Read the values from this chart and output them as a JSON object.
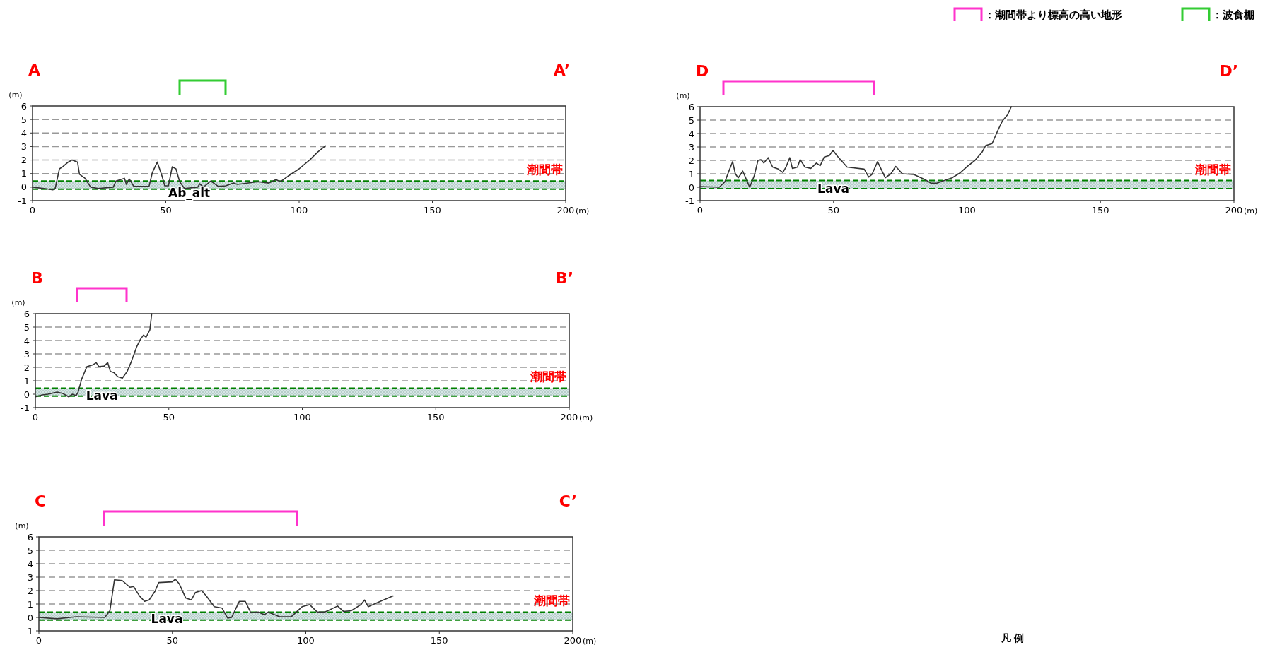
{
  "chart_data": [
    {
      "type": "line",
      "title": "A",
      "subtitle": "A’",
      "ylabel": "(m)",
      "xlabel": "(m)",
      "xlim": [
        0,
        200
      ],
      "ylim": [
        -1,
        6
      ],
      "xticks": [
        0,
        50,
        100,
        150,
        200
      ],
      "yticks": [
        -1,
        0,
        1,
        2,
        3,
        4,
        5,
        6
      ],
      "grid": "y",
      "series": [
        {
          "color": "#333333",
          "x": [
            0,
            4.2,
            7.7,
            8.5,
            10.1,
            11.3,
            13.4,
            14.8,
            16.9,
            17.6,
            19.7,
            21.8,
            24.6,
            30.3,
            31.3,
            34.5,
            35.2,
            36.3,
            38,
            43.7,
            45,
            46.8,
            48.6,
            49.6,
            51,
            52.4,
            53.8,
            55.2,
            57,
            62,
            62.7,
            64.1,
            66.9,
            69.7,
            72.5,
            75.4,
            76.8,
            78.9,
            84.5,
            88.7,
            91.3,
            93,
            95.8,
            100,
            104.2,
            107,
            109.9
          ],
          "values": [
            0,
            -0.1,
            -0.2,
            -0.1,
            1.35,
            1.5,
            1.85,
            2.0,
            1.85,
            0.95,
            0.65,
            0,
            -0.1,
            0,
            0.45,
            0.65,
            0.2,
            0.6,
            0.05,
            0.05,
            1.1,
            1.85,
            0.8,
            0.1,
            0.1,
            1.5,
            1.35,
            0.4,
            -0.1,
            0,
            0.25,
            0,
            0.45,
            0.05,
            0.1,
            0.3,
            0.2,
            0.25,
            0.4,
            0.3,
            0.55,
            0.4,
            0.8,
            1.35,
            2.05,
            2.6,
            3.05
          ]
        }
      ],
      "bands": [
        {
          "axis": "y",
          "from": -0.15,
          "to": 0.45,
          "label": "潮間帯"
        }
      ],
      "ref_lines": [
        {
          "axis": "y",
          "value": -0.15,
          "color": "#008000",
          "line_style": "dashed"
        },
        {
          "axis": "y",
          "value": 0.45,
          "color": "#008000",
          "line_style": "dashed"
        }
      ],
      "annotations": [
        "Ab_alt"
      ]
    },
    {
      "type": "line",
      "title": "B",
      "subtitle": "B’",
      "ylabel": "(m)",
      "xlabel": "(m)",
      "xlim": [
        0,
        200
      ],
      "ylim": [
        -1,
        6
      ],
      "xticks": [
        0,
        50,
        100,
        150,
        200
      ],
      "yticks": [
        -1,
        0,
        1,
        2,
        3,
        4,
        5,
        6
      ],
      "grid": "y",
      "series": [
        {
          "color": "#333333",
          "x": [
            0,
            2.6,
            4.7,
            8.2,
            10.3,
            12.5,
            13.9,
            15.3,
            16,
            17.4,
            19.3,
            21.7,
            22.8,
            23.8,
            25.8,
            27.1,
            28.1,
            29.5,
            30.9,
            32.6,
            34.4,
            35.9,
            38,
            39.4,
            40.5,
            41.5,
            42.9,
            43.6
          ],
          "values": [
            -0.2,
            -0.05,
            0,
            0.15,
            0.05,
            -0.2,
            0,
            -0.1,
            0.15,
            1.15,
            2.05,
            2.2,
            2.35,
            2.05,
            2.1,
            2.35,
            1.7,
            1.6,
            1.3,
            1.2,
            1.7,
            2.4,
            3.55,
            4.1,
            4.4,
            4.25,
            4.8,
            6
          ]
        }
      ],
      "bands": [
        {
          "axis": "y",
          "from": -0.15,
          "to": 0.45,
          "label": "潮間帯"
        }
      ],
      "ref_lines": [
        {
          "axis": "y",
          "value": -0.15,
          "color": "#008000",
          "line_style": "dashed"
        },
        {
          "axis": "y",
          "value": 0.45,
          "color": "#008000",
          "line_style": "dashed"
        }
      ],
      "annotations": [
        {
          "text": "Lava",
          "x": 19,
          "y": -0.1
        }
      ]
    },
    {
      "type": "line",
      "title": "C",
      "subtitle": "C’",
      "ylabel": "(m)",
      "xlabel": "(m)",
      "xlim": [
        0,
        200
      ],
      "ylim": [
        -1,
        6
      ],
      "xticks": [
        0,
        50,
        100,
        150,
        200
      ],
      "yticks": [
        -1,
        0,
        1,
        2,
        3,
        4,
        5,
        6
      ],
      "grid": "y",
      "series": [
        {
          "color": "#333333",
          "x": [
            0,
            6.8,
            14,
            24.7,
            26.6,
            28.3,
            31.2,
            34.1,
            35.5,
            37.7,
            39.6,
            41.3,
            43.5,
            44.9,
            50,
            51.1,
            52.6,
            55,
            57.1,
            58.6,
            61,
            62.9,
            65.7,
            68.6,
            70.7,
            72.2,
            75.1,
            77.3,
            79.4,
            82.3,
            84.5,
            85.9,
            90.2,
            94.5,
            98.6,
            101.4,
            104.3,
            107,
            109.8,
            111.9,
            114.1,
            117,
            120.6,
            122,
            123.4,
            128.5,
            132.7
          ],
          "values": [
            0,
            -0.1,
            0.05,
            0,
            0.5,
            2.8,
            2.75,
            2.25,
            2.3,
            1.6,
            1.2,
            1.3,
            1.95,
            2.6,
            2.65,
            2.85,
            2.5,
            1.45,
            1.3,
            1.85,
            2,
            1.55,
            0.8,
            0.7,
            -0.05,
            0,
            1.2,
            1.2,
            0.35,
            0.4,
            0.2,
            0.4,
            0.05,
            0.05,
            0.8,
            0.95,
            0.4,
            0.4,
            0.65,
            0.85,
            0.45,
            0.5,
            0.95,
            1.3,
            0.8,
            1.25,
            1.6
          ]
        }
      ],
      "bands": [
        {
          "axis": "y",
          "from": -0.2,
          "to": 0.4,
          "label": "潮間帯"
        }
      ],
      "ref_lines": [
        {
          "axis": "y",
          "value": -0.2,
          "color": "#008000",
          "line_style": "dashed"
        },
        {
          "axis": "y",
          "value": 0.4,
          "color": "#008000",
          "line_style": "dashed"
        }
      ],
      "annotations": [
        {
          "text": "Lava",
          "x": 42,
          "y": -0.1
        }
      ]
    },
    {
      "type": "line",
      "title": "D",
      "subtitle": "D’",
      "ylabel": "(m)",
      "xlabel": "(m)",
      "xlim": [
        0,
        200
      ],
      "ylim": [
        -1,
        6
      ],
      "xticks": [
        0,
        50,
        100,
        150,
        200
      ],
      "yticks": [
        -1,
        0,
        1,
        2,
        3,
        4,
        5,
        6
      ],
      "grid": "y",
      "series": [
        {
          "color": "#333333",
          "x": [
            0,
            7.2,
            9.3,
            10.7,
            12.2,
            13.2,
            14.3,
            16,
            18.6,
            20.3,
            21.7,
            22.8,
            23.9,
            25.5,
            27.2,
            29.3,
            31,
            32.2,
            33.6,
            34.6,
            36.5,
            37.5,
            39.3,
            41.5,
            43.6,
            45,
            46.5,
            48.4,
            49.8,
            51.5,
            55.1,
            61.5,
            63.2,
            64.4,
            66.5,
            69.4,
            71.5,
            73.3,
            75.8,
            80.1,
            84.4,
            86.5,
            88.7,
            94.4,
            97.3,
            100.1,
            103,
            105.6,
            107,
            109.4,
            111.6,
            113.3,
            115.2,
            116.6
          ],
          "values": [
            0.05,
            0,
            0.4,
            1.15,
            1.9,
            1,
            0.7,
            1.2,
            0,
            0.85,
            2,
            2.05,
            1.8,
            2.2,
            1.5,
            1.35,
            1.1,
            1.5,
            2.2,
            1.4,
            1.5,
            2.05,
            1.5,
            1.4,
            1.8,
            1.6,
            2.25,
            2.35,
            2.75,
            2.3,
            1.5,
            1.35,
            0.75,
            0.95,
            1.9,
            0.7,
            1,
            1.55,
            1,
            0.95,
            0.55,
            0.3,
            0.3,
            0.7,
            1.05,
            1.55,
            2,
            2.6,
            3.1,
            3.25,
            4.25,
            4.95,
            5.4,
            6
          ]
        }
      ],
      "bands": [
        {
          "axis": "y",
          "from": -0.1,
          "to": 0.5,
          "label": "潮間帯"
        }
      ],
      "ref_lines": [
        {
          "axis": "y",
          "value": -0.1,
          "color": "#008000",
          "line_style": "dashed"
        },
        {
          "axis": "y",
          "value": 0.5,
          "color": "#008000",
          "line_style": "dashed"
        }
      ],
      "annotations": [
        {
          "text": "Lava",
          "x": 44,
          "y": -0.1
        }
      ]
    },
    {
      "type": "other",
      "annotations": [
        "：潮間帯より標高の高い地形",
        "：波食棚",
        "凡 例"
      ],
      "colors": [
        "#ff33cc",
        "#33cc33"
      ]
    }
  ]
}
